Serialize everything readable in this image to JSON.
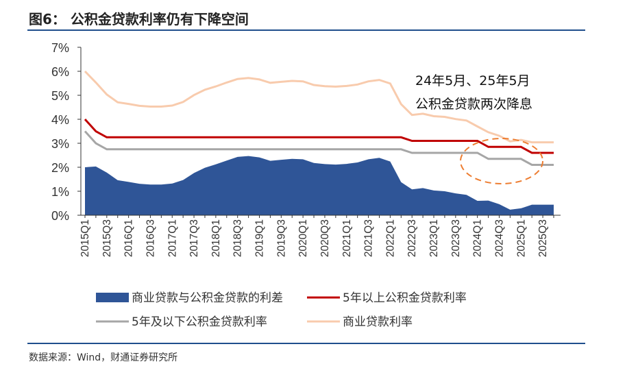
{
  "figure": {
    "title": "图6： 公积金贷款利率仍有下降空间",
    "source": "数据来源：Wind，财通证券研究所"
  },
  "chart_data": {
    "type": "area+line",
    "title": "公积金贷款利率仍有下降空间",
    "ylabel": "",
    "xlabel": "",
    "ylim": [
      0,
      7
    ],
    "yticks": [
      "0%",
      "1%",
      "2%",
      "3%",
      "4%",
      "5%",
      "6%",
      "7%"
    ],
    "categories": [
      "2015Q1",
      "2015Q2",
      "2015Q3",
      "2015Q4",
      "2016Q1",
      "2016Q2",
      "2016Q3",
      "2016Q4",
      "2017Q1",
      "2017Q2",
      "2017Q3",
      "2017Q4",
      "2018Q1",
      "2018Q2",
      "2018Q3",
      "2018Q4",
      "2019Q1",
      "2019Q2",
      "2019Q3",
      "2019Q4",
      "2020Q1",
      "2020Q2",
      "2020Q3",
      "2020Q4",
      "2021Q1",
      "2021Q2",
      "2021Q3",
      "2021Q4",
      "2022Q1",
      "2022Q2",
      "2022Q3",
      "2022Q4",
      "2023Q1",
      "2023Q2",
      "2023Q3",
      "2023Q4",
      "2024Q1",
      "2024Q2",
      "2024Q3",
      "2024Q4",
      "2025Q1",
      "2025Q2",
      "2025Q3",
      "2025Q4"
    ],
    "xtick_labels": [
      "2015Q1",
      "2015Q3",
      "2016Q1",
      "2016Q3",
      "2017Q1",
      "2017Q3",
      "2018Q1",
      "2018Q3",
      "2019Q1",
      "2019Q3",
      "2020Q1",
      "2020Q3",
      "2021Q1",
      "2021Q3",
      "2022Q1",
      "2022Q3",
      "2023Q1",
      "2023Q3",
      "2024Q1",
      "2024Q3",
      "2025Q1",
      "2025Q3"
    ],
    "series": [
      {
        "name": "商业贷款与公积金贷款的利差",
        "kind": "area",
        "color": "#2f5597",
        "values": [
          2.0,
          2.03,
          1.78,
          1.46,
          1.39,
          1.31,
          1.28,
          1.28,
          1.32,
          1.47,
          1.76,
          1.98,
          2.12,
          2.28,
          2.43,
          2.47,
          2.41,
          2.27,
          2.31,
          2.35,
          2.33,
          2.18,
          2.13,
          2.11,
          2.14,
          2.2,
          2.33,
          2.39,
          2.24,
          1.38,
          1.08,
          1.13,
          1.03,
          1.0,
          0.91,
          0.85,
          0.6,
          0.61,
          0.46,
          0.23,
          0.29,
          0.44,
          0.44,
          0.44
        ]
      },
      {
        "name": "5年以上公积金贷款利率",
        "kind": "line",
        "color": "#c00000",
        "values": [
          4.0,
          3.5,
          3.25,
          3.25,
          3.25,
          3.25,
          3.25,
          3.25,
          3.25,
          3.25,
          3.25,
          3.25,
          3.25,
          3.25,
          3.25,
          3.25,
          3.25,
          3.25,
          3.25,
          3.25,
          3.25,
          3.25,
          3.25,
          3.25,
          3.25,
          3.25,
          3.25,
          3.25,
          3.25,
          3.25,
          3.1,
          3.1,
          3.1,
          3.1,
          3.1,
          3.1,
          3.1,
          2.85,
          2.85,
          2.85,
          2.85,
          2.6,
          2.6,
          2.6
        ]
      },
      {
        "name": "5年及以下公积金贷款利率",
        "kind": "line",
        "color": "#a6a6a6",
        "values": [
          3.5,
          3.0,
          2.75,
          2.75,
          2.75,
          2.75,
          2.75,
          2.75,
          2.75,
          2.75,
          2.75,
          2.75,
          2.75,
          2.75,
          2.75,
          2.75,
          2.75,
          2.75,
          2.75,
          2.75,
          2.75,
          2.75,
          2.75,
          2.75,
          2.75,
          2.75,
          2.75,
          2.75,
          2.75,
          2.75,
          2.6,
          2.6,
          2.6,
          2.6,
          2.6,
          2.6,
          2.6,
          2.35,
          2.35,
          2.35,
          2.35,
          2.1,
          2.1,
          2.1
        ]
      },
      {
        "name": "商业贷款利率",
        "kind": "line",
        "color": "#f8cbad",
        "values": [
          6.0,
          5.53,
          5.03,
          4.71,
          4.64,
          4.56,
          4.53,
          4.53,
          4.57,
          4.72,
          5.01,
          5.23,
          5.37,
          5.53,
          5.68,
          5.72,
          5.66,
          5.52,
          5.56,
          5.6,
          5.58,
          5.43,
          5.38,
          5.36,
          5.39,
          5.45,
          5.58,
          5.64,
          5.49,
          4.63,
          4.18,
          4.23,
          4.13,
          4.1,
          4.01,
          3.95,
          3.7,
          3.46,
          3.31,
          3.08,
          3.14,
          3.04,
          3.04,
          3.04
        ]
      }
    ],
    "annotation": {
      "line1": "24年5月、25年5月",
      "line2": "公积金贷款两次降息"
    },
    "legend_position": "bottom",
    "grid": false
  }
}
